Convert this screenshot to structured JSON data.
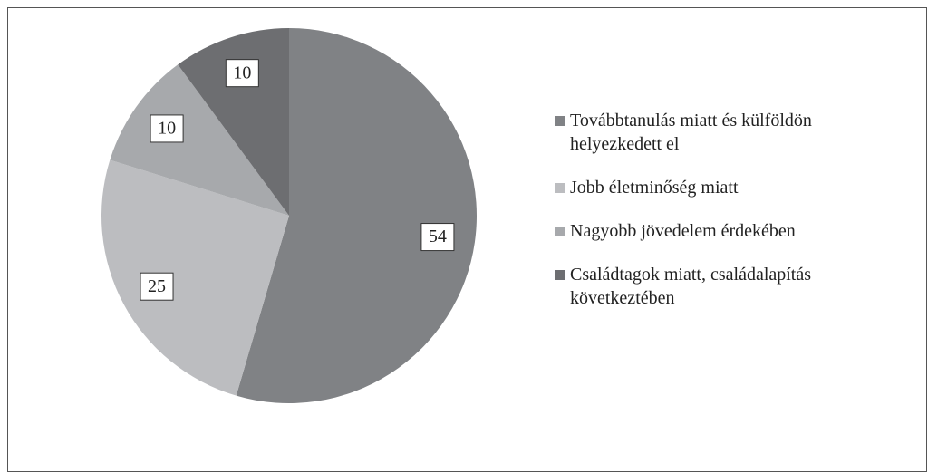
{
  "chart_data": {
    "type": "pie",
    "categories": [
      "Továbbtanulás miatt és külföldön helyezkedett el",
      "Jobb életminőség miatt",
      "Nagyobb jövedelem érdekében",
      "Családtagok miatt, családalapítás következtében"
    ],
    "values": [
      54,
      25,
      10,
      10
    ],
    "colors": [
      "#808285",
      "#bcbdc0",
      "#a7a9ac",
      "#6d6e71"
    ],
    "legend": "right"
  }
}
